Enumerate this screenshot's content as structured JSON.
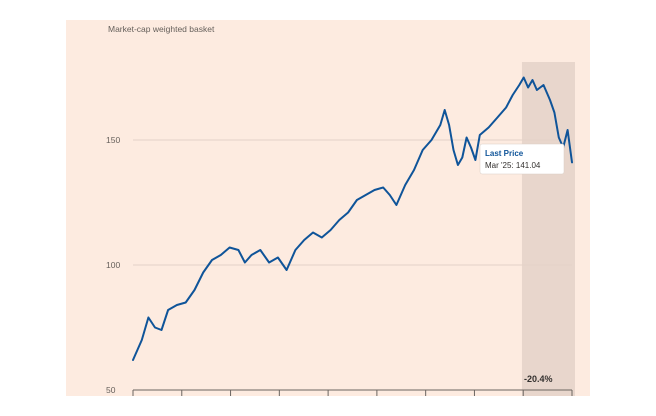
{
  "chart_data": {
    "type": "line",
    "subtitle": "Market-cap weighted basket",
    "ylim": [
      50,
      190
    ],
    "yticks": [
      50,
      100,
      150
    ],
    "grid": "horizontal",
    "shaded_range": [
      0.886,
      1.0
    ],
    "series": [
      {
        "color": "#0f5499",
        "points": [
          [
            0.0,
            62
          ],
          [
            0.02,
            70
          ],
          [
            0.035,
            79
          ],
          [
            0.05,
            75
          ],
          [
            0.065,
            74
          ],
          [
            0.08,
            82
          ],
          [
            0.1,
            84
          ],
          [
            0.12,
            85
          ],
          [
            0.14,
            90
          ],
          [
            0.16,
            97
          ],
          [
            0.18,
            102
          ],
          [
            0.2,
            104
          ],
          [
            0.22,
            107
          ],
          [
            0.24,
            106
          ],
          [
            0.255,
            101
          ],
          [
            0.27,
            104
          ],
          [
            0.29,
            106
          ],
          [
            0.31,
            101
          ],
          [
            0.33,
            103
          ],
          [
            0.35,
            98
          ],
          [
            0.37,
            106
          ],
          [
            0.39,
            110
          ],
          [
            0.41,
            113
          ],
          [
            0.43,
            111
          ],
          [
            0.45,
            114
          ],
          [
            0.47,
            118
          ],
          [
            0.49,
            121
          ],
          [
            0.51,
            126
          ],
          [
            0.53,
            128
          ],
          [
            0.55,
            130
          ],
          [
            0.57,
            131
          ],
          [
            0.585,
            128
          ],
          [
            0.6,
            124
          ],
          [
            0.62,
            132
          ],
          [
            0.64,
            138
          ],
          [
            0.66,
            146
          ],
          [
            0.68,
            150
          ],
          [
            0.7,
            156
          ],
          [
            0.71,
            162
          ],
          [
            0.72,
            156
          ],
          [
            0.73,
            146
          ],
          [
            0.74,
            140
          ],
          [
            0.75,
            143
          ],
          [
            0.76,
            151
          ],
          [
            0.77,
            147
          ],
          [
            0.78,
            142
          ],
          [
            0.79,
            152
          ],
          [
            0.81,
            155
          ],
          [
            0.83,
            159
          ],
          [
            0.85,
            163
          ],
          [
            0.865,
            168
          ],
          [
            0.88,
            172
          ],
          [
            0.89,
            175
          ],
          [
            0.9,
            171
          ],
          [
            0.91,
            174
          ],
          [
            0.92,
            170
          ],
          [
            0.935,
            172
          ],
          [
            0.95,
            166
          ],
          [
            0.96,
            161
          ],
          [
            0.97,
            151
          ],
          [
            0.98,
            147
          ],
          [
            0.99,
            154
          ],
          [
            1.0,
            141.04
          ]
        ]
      }
    ],
    "callout": {
      "title": "Last Price",
      "text": "Mar '25: 141.04"
    },
    "change_label": "-20.4%"
  }
}
